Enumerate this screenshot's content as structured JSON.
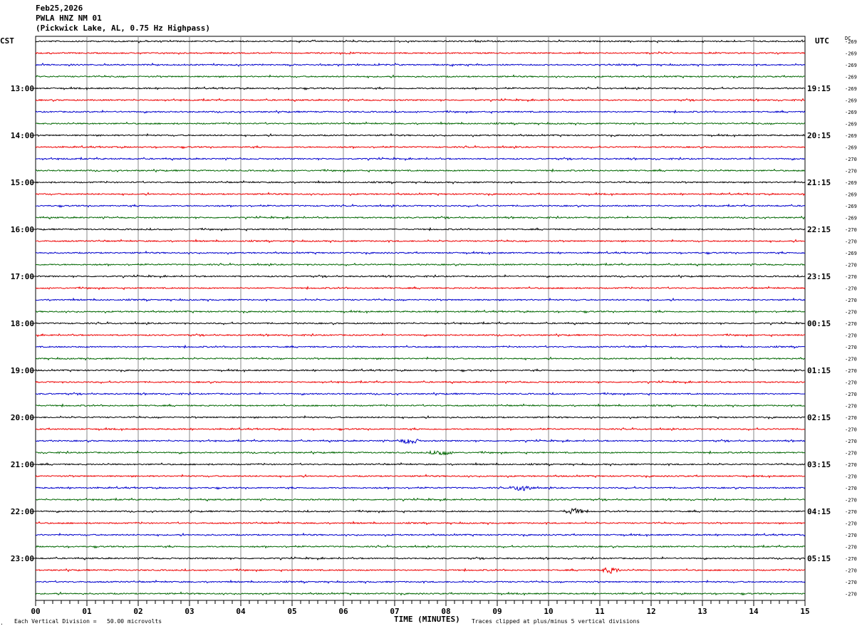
{
  "header": {
    "date": "Feb25,2026",
    "station": "PWLA HNZ NM 01",
    "location": "(Pickwick Lake, AL, 0.75 Hz Highpass)"
  },
  "labels": {
    "left_tz": "CST",
    "right_tz": "UTC",
    "dc": "DC"
  },
  "footer": {
    "scale": "Each Vertical Division =   50.00 microvolts",
    "clip": "Traces clipped at plus/minus 5 vertical divisions",
    "mark": "."
  },
  "chart_data": {
    "type": "line",
    "title": "",
    "xlabel": "TIME (MINUTES)",
    "ylabel": "",
    "x_ticks": [
      "00",
      "01",
      "02",
      "03",
      "04",
      "05",
      "06",
      "07",
      "08",
      "09",
      "10",
      "11",
      "12",
      "13",
      "14",
      "15"
    ],
    "xlim": [
      0,
      15
    ],
    "minute_grid": true,
    "trace_colors": [
      "#000000",
      "#ee0000",
      "#0000cc",
      "#006600"
    ],
    "left_hour_labels": [
      "13:00",
      "14:00",
      "15:00",
      "16:00",
      "17:00",
      "18:00",
      "19:00",
      "20:00",
      "21:00",
      "22:00",
      "23:00"
    ],
    "right_hour_labels": [
      "19:15",
      "20:15",
      "21:15",
      "22:15",
      "23:15",
      "00:15",
      "01:15",
      "02:15",
      "03:15",
      "04:15",
      "05:15"
    ],
    "dc_offsets": [
      -269,
      -269,
      -269,
      -269,
      -269,
      -269,
      -269,
      -269,
      -269,
      -269,
      -270,
      -270,
      -269,
      -269,
      -269,
      -269,
      -270,
      -270,
      -269,
      -270,
      -270,
      -270,
      -270,
      -270,
      -270,
      -270,
      -270,
      -270,
      -270,
      -270,
      -270,
      -270,
      -270,
      -270,
      -270,
      -270,
      -270,
      -270,
      -270,
      -270,
      -270,
      -270,
      -270,
      -270,
      -270,
      -270,
      -270,
      -270
    ],
    "events": [
      {
        "trace": 34,
        "x": 7.3,
        "amplitude": 4
      },
      {
        "trace": 35,
        "x": 7.9,
        "amplitude": 4
      },
      {
        "trace": 38,
        "x": 9.5,
        "amplitude": 5
      },
      {
        "trace": 40,
        "x": 10.5,
        "amplitude": 4
      },
      {
        "trace": 45,
        "x": 11.2,
        "amplitude": 4
      }
    ]
  }
}
